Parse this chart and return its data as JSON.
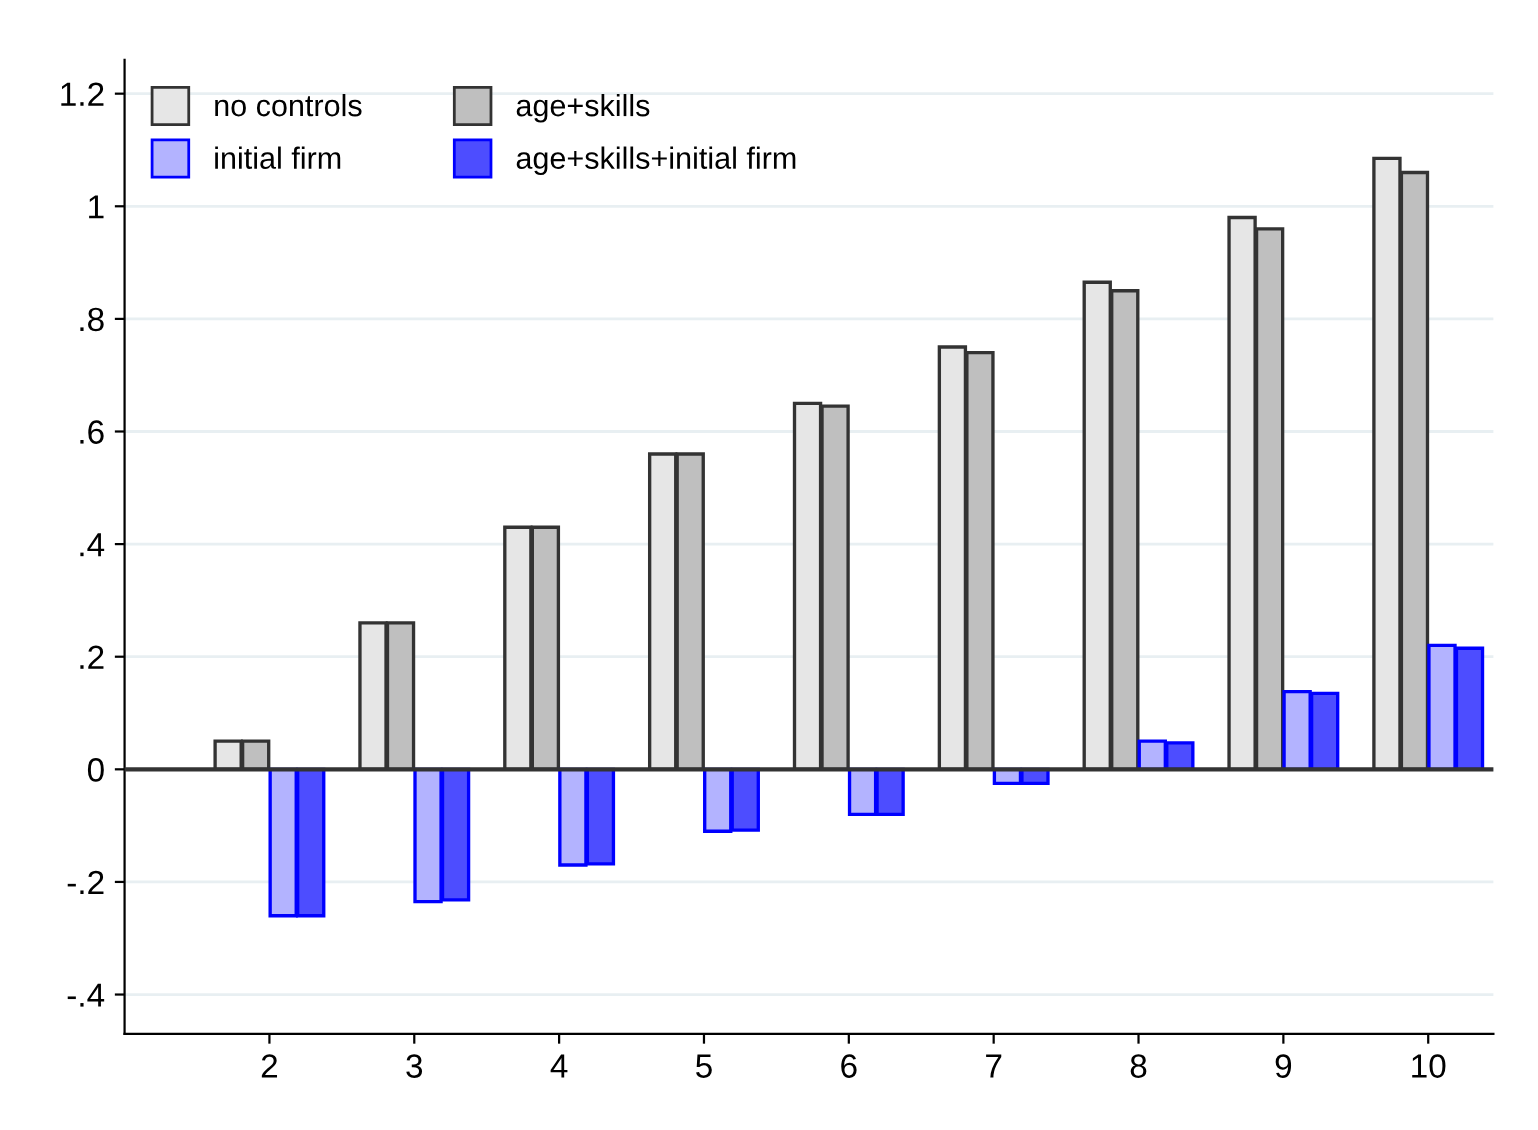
{
  "chart_data": {
    "type": "bar",
    "categories": [
      "2",
      "3",
      "4",
      "5",
      "6",
      "7",
      "8",
      "9",
      "10"
    ],
    "series": [
      {
        "name": "no controls",
        "color": "#e6e6e6",
        "values": [
          0.05,
          0.26,
          0.43,
          0.56,
          0.65,
          0.75,
          0.865,
          0.98,
          1.085
        ]
      },
      {
        "name": "age+skills",
        "color": "#bfbfbf",
        "values": [
          0.05,
          0.26,
          0.43,
          0.56,
          0.645,
          0.74,
          0.85,
          0.96,
          1.06
        ]
      },
      {
        "name": "initial firm",
        "color": "#b3b3ff",
        "values": [
          -0.26,
          -0.235,
          -0.17,
          -0.11,
          -0.08,
          -0.025,
          0.05,
          0.138,
          0.22
        ]
      },
      {
        "name": "age+skills+initial firm",
        "color": "#4d4dff",
        "values": [
          -0.26,
          -0.232,
          -0.168,
          -0.108,
          -0.08,
          -0.025,
          0.047,
          0.135,
          0.215
        ]
      }
    ],
    "ylim": [
      -0.47,
      1.26
    ],
    "yticks": [
      {
        "value": -0.4,
        "label": "-.4"
      },
      {
        "value": -0.2,
        "label": "-.2"
      },
      0,
      {
        "value": 0.2,
        "label": ".2"
      },
      {
        "value": 0.4,
        "label": ".4"
      },
      {
        "value": 0.6,
        "label": ".6"
      },
      {
        "value": 0.8,
        "label": ".8"
      },
      1,
      1.2
    ],
    "grid": "y",
    "legend": "top left"
  }
}
